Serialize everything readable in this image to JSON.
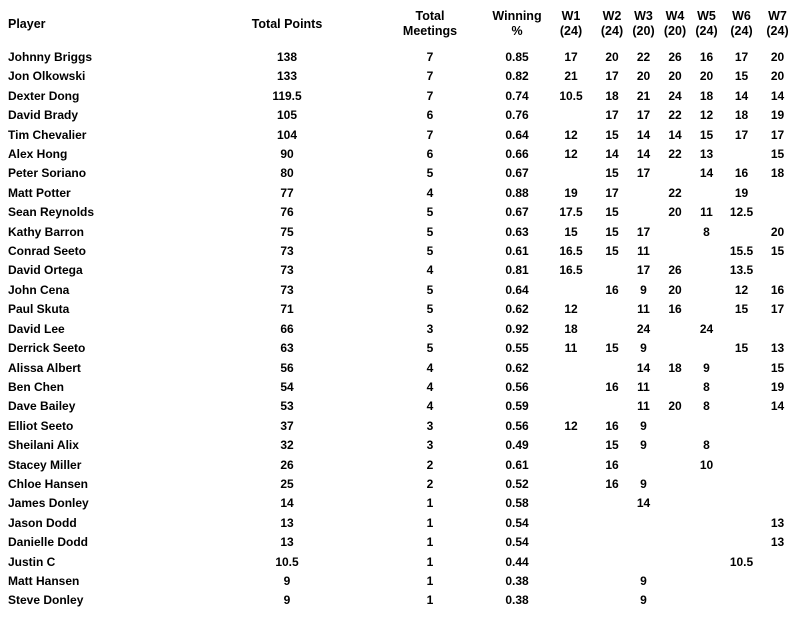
{
  "colors": {
    "text": "#000000",
    "background": "#ffffff"
  },
  "table": {
    "columns": [
      {
        "key": "player",
        "label": "Player"
      },
      {
        "key": "points",
        "label": "Total Points"
      },
      {
        "key": "meetings",
        "label": "Total\nMeetings"
      },
      {
        "key": "pct",
        "label": "Winning %"
      },
      {
        "key": "w1",
        "label": "W1\n(24)"
      },
      {
        "key": "w2",
        "label": "W2\n(24)"
      },
      {
        "key": "w3",
        "label": "W3\n(20)"
      },
      {
        "key": "w4",
        "label": "W4\n(20)"
      },
      {
        "key": "w5",
        "label": "W5\n(24)"
      },
      {
        "key": "w6",
        "label": "W6\n(24)"
      },
      {
        "key": "w7",
        "label": "W7\n(24)"
      }
    ],
    "rows": [
      [
        "Johnny Briggs",
        "138",
        "7",
        "0.85",
        "17",
        "20",
        "22",
        "26",
        "16",
        "17",
        "20"
      ],
      [
        "Jon Olkowski",
        "133",
        "7",
        "0.82",
        "21",
        "17",
        "20",
        "20",
        "20",
        "15",
        "20"
      ],
      [
        "Dexter Dong",
        "119.5",
        "7",
        "0.74",
        "10.5",
        "18",
        "21",
        "24",
        "18",
        "14",
        "14"
      ],
      [
        "David Brady",
        "105",
        "6",
        "0.76",
        "",
        "17",
        "17",
        "22",
        "12",
        "18",
        "19"
      ],
      [
        "Tim Chevalier",
        "104",
        "7",
        "0.64",
        "12",
        "15",
        "14",
        "14",
        "15",
        "17",
        "17"
      ],
      [
        "Alex Hong",
        "90",
        "6",
        "0.66",
        "12",
        "14",
        "14",
        "22",
        "13",
        "",
        "15"
      ],
      [
        "Peter Soriano",
        "80",
        "5",
        "0.67",
        "",
        "15",
        "17",
        "",
        "14",
        "16",
        "18"
      ],
      [
        "Matt Potter",
        "77",
        "4",
        "0.88",
        "19",
        "17",
        "",
        "22",
        "",
        "19",
        ""
      ],
      [
        "Sean Reynolds",
        "76",
        "5",
        "0.67",
        "17.5",
        "15",
        "",
        "20",
        "11",
        "12.5",
        ""
      ],
      [
        "Kathy Barron",
        "75",
        "5",
        "0.63",
        "15",
        "15",
        "17",
        "",
        "8",
        "",
        "20"
      ],
      [
        "Conrad Seeto",
        "73",
        "5",
        "0.61",
        "16.5",
        "15",
        "11",
        "",
        "",
        "15.5",
        "15"
      ],
      [
        "David Ortega",
        "73",
        "4",
        "0.81",
        "16.5",
        "",
        "17",
        "26",
        "",
        "13.5",
        ""
      ],
      [
        "John Cena",
        "73",
        "5",
        "0.64",
        "",
        "16",
        "9",
        "20",
        "",
        "12",
        "16"
      ],
      [
        "Paul Skuta",
        "71",
        "5",
        "0.62",
        "12",
        "",
        "11",
        "16",
        "",
        "15",
        "17"
      ],
      [
        "David Lee",
        "66",
        "3",
        "0.92",
        "18",
        "",
        "24",
        "",
        "24",
        "",
        ""
      ],
      [
        "Derrick Seeto",
        "63",
        "5",
        "0.55",
        "11",
        "15",
        "9",
        "",
        "",
        "15",
        "13"
      ],
      [
        "Alissa Albert",
        "56",
        "4",
        "0.62",
        "",
        "",
        "14",
        "18",
        "9",
        "",
        "15"
      ],
      [
        "Ben Chen",
        "54",
        "4",
        "0.56",
        "",
        "16",
        "11",
        "",
        "8",
        "",
        "19"
      ],
      [
        "Dave Bailey",
        "53",
        "4",
        "0.59",
        "",
        "",
        "11",
        "20",
        "8",
        "",
        "14"
      ],
      [
        "Elliot Seeto",
        "37",
        "3",
        "0.56",
        "12",
        "16",
        "9",
        "",
        "",
        "",
        ""
      ],
      [
        "Sheilani Alix",
        "32",
        "3",
        "0.49",
        "",
        "15",
        "9",
        "",
        "8",
        "",
        ""
      ],
      [
        "Stacey Miller",
        "26",
        "2",
        "0.61",
        "",
        "16",
        "",
        "",
        "10",
        "",
        ""
      ],
      [
        "Chloe Hansen",
        "25",
        "2",
        "0.52",
        "",
        "16",
        "9",
        "",
        "",
        "",
        ""
      ],
      [
        "James Donley",
        "14",
        "1",
        "0.58",
        "",
        "",
        "14",
        "",
        "",
        "",
        ""
      ],
      [
        "Jason Dodd",
        "13",
        "1",
        "0.54",
        "",
        "",
        "",
        "",
        "",
        "",
        "13"
      ],
      [
        "Danielle Dodd",
        "13",
        "1",
        "0.54",
        "",
        "",
        "",
        "",
        "",
        "",
        "13"
      ],
      [
        "Justin C",
        "10.5",
        "1",
        "0.44",
        "",
        "",
        "",
        "",
        "",
        "10.5",
        ""
      ],
      [
        "Matt Hansen",
        "9",
        "1",
        "0.38",
        "",
        "",
        "9",
        "",
        "",
        "",
        ""
      ],
      [
        "Steve Donley",
        "9",
        "1",
        "0.38",
        "",
        "",
        "9",
        "",
        "",
        "",
        ""
      ]
    ]
  }
}
